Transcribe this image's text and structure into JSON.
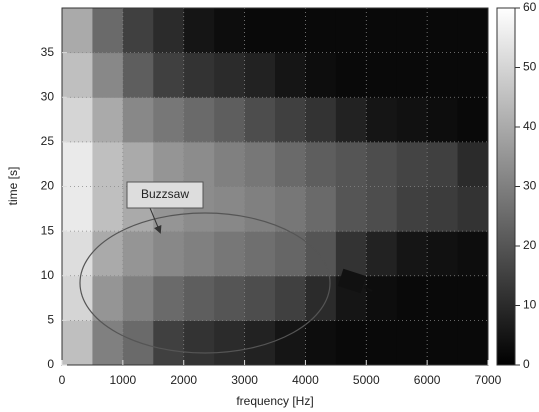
{
  "chart_data": {
    "type": "heatmap",
    "xlabel": "frequency [Hz]",
    "ylabel": "time [s]",
    "annotation": "Buzzsaw",
    "colormap": "gray",
    "xbins": [
      0,
      500,
      1000,
      1500,
      2000,
      2500,
      3000,
      3500,
      4000,
      4500,
      5000,
      5500,
      6000,
      6500,
      7000
    ],
    "ybins": [
      0,
      5,
      10,
      15,
      20,
      25,
      30,
      35,
      40
    ],
    "z": [
      [
        45,
        30,
        25,
        15,
        12,
        10,
        8,
        5,
        3,
        2,
        2,
        2,
        2,
        2
      ],
      [
        50,
        35,
        30,
        25,
        22,
        20,
        18,
        15,
        10,
        5,
        3,
        2,
        2,
        2
      ],
      [
        52,
        40,
        35,
        32,
        30,
        28,
        26,
        24,
        20,
        12,
        8,
        5,
        4,
        3
      ],
      [
        55,
        45,
        40,
        35,
        33,
        32,
        30,
        28,
        25,
        20,
        18,
        15,
        14,
        12
      ],
      [
        55,
        45,
        40,
        35,
        33,
        30,
        28,
        25,
        22,
        20,
        18,
        16,
        15,
        10
      ],
      [
        50,
        40,
        32,
        28,
        25,
        22,
        18,
        15,
        12,
        8,
        5,
        4,
        3,
        2
      ],
      [
        45,
        32,
        22,
        15,
        12,
        10,
        8,
        5,
        3,
        2,
        2,
        2,
        2,
        2
      ],
      [
        40,
        25,
        15,
        10,
        5,
        3,
        2,
        2,
        2,
        2,
        2,
        2,
        2,
        2
      ]
    ],
    "xlim": [
      0,
      7000
    ],
    "xticks": [
      0,
      1000,
      2000,
      3000,
      4000,
      5000,
      6000,
      7000
    ],
    "ylim": [
      0,
      40
    ],
    "yticks": [
      0,
      5,
      10,
      15,
      20,
      25,
      30,
      35
    ],
    "clim": [
      0,
      60
    ],
    "cticks": [
      0,
      10,
      20,
      30,
      40,
      50,
      60
    ],
    "grid": true
  }
}
